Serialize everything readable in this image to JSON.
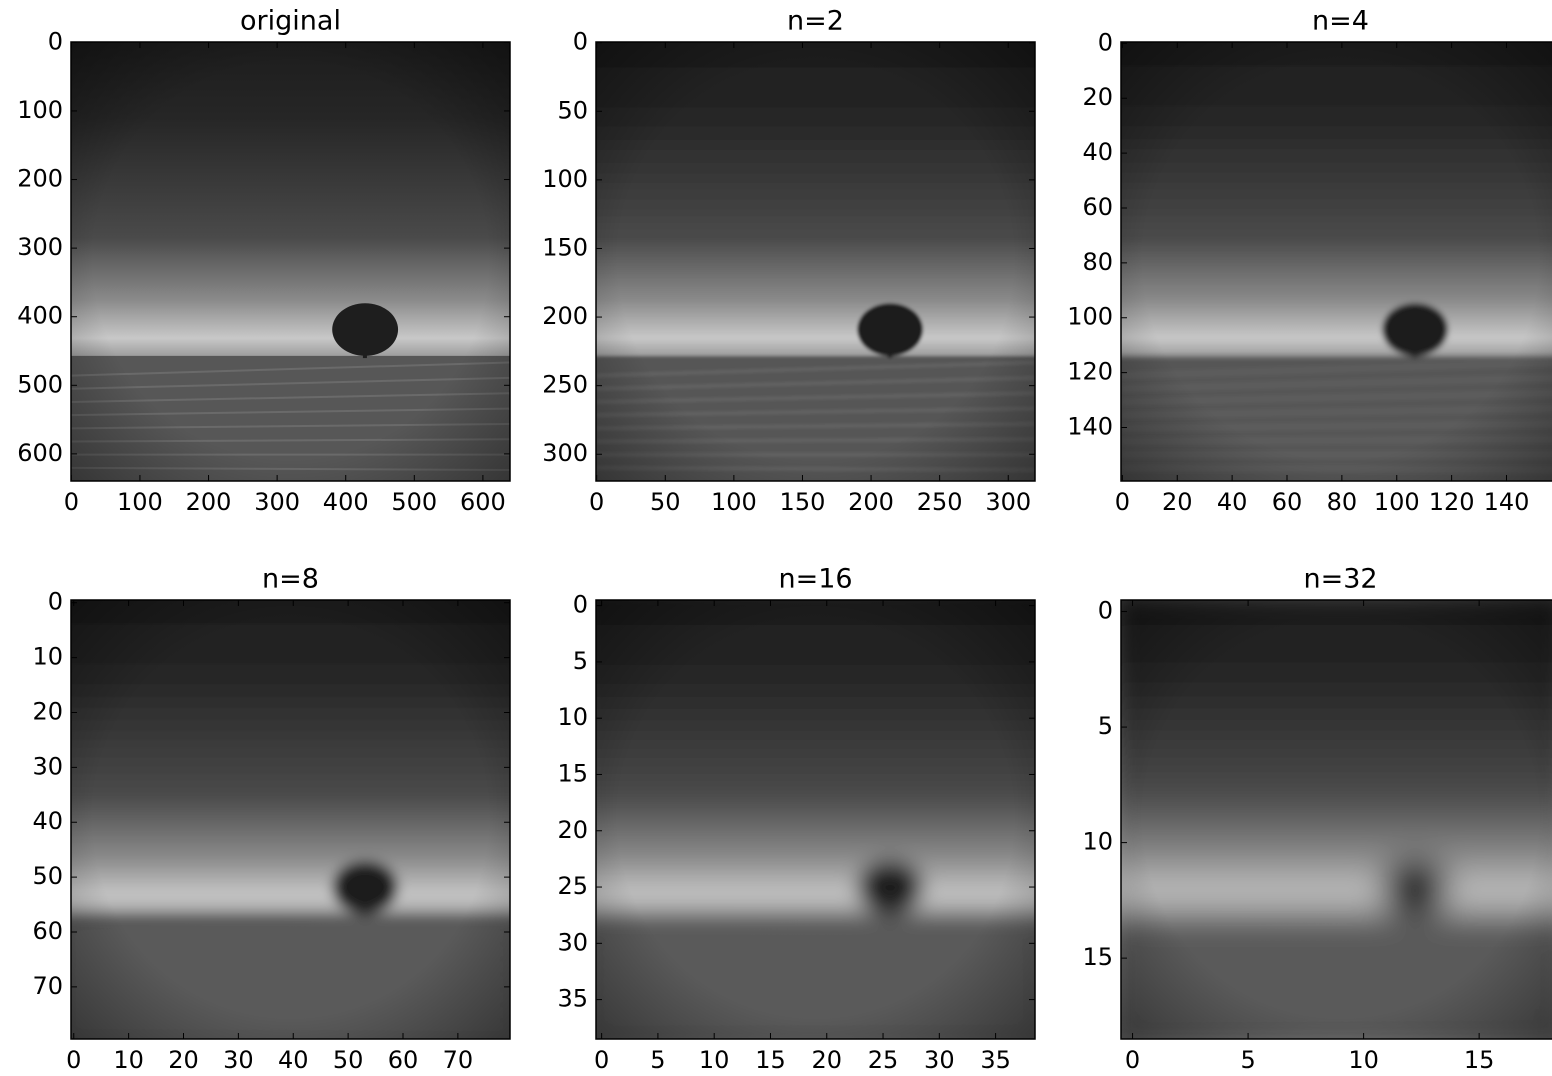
{
  "chart_data": [
    {
      "type": "image",
      "title": "original",
      "xlim": [
        -0.5,
        639.5
      ],
      "ylim": [
        639.5,
        -0.5
      ],
      "xticks": [
        0,
        100,
        200,
        300,
        400,
        500,
        600
      ],
      "yticks": [
        0,
        100,
        200,
        300,
        400,
        500,
        600
      ]
    },
    {
      "type": "image",
      "title": "n=2",
      "xlim": [
        -0.5,
        319.5
      ],
      "ylim": [
        319.5,
        -0.5
      ],
      "xticks": [
        0,
        50,
        100,
        150,
        200,
        250,
        300
      ],
      "yticks": [
        0,
        50,
        100,
        150,
        200,
        250,
        300
      ]
    },
    {
      "type": "image",
      "title": "n=4",
      "xlim": [
        -0.5,
        159.5
      ],
      "ylim": [
        159.5,
        -0.5
      ],
      "xticks": [
        0,
        20,
        40,
        60,
        80,
        100,
        120,
        140
      ],
      "yticks": [
        0,
        20,
        40,
        60,
        80,
        100,
        120,
        140
      ]
    },
    {
      "type": "image",
      "title": "n=8",
      "xlim": [
        -0.5,
        79.5
      ],
      "ylim": [
        79.5,
        -0.5
      ],
      "xticks": [
        0,
        10,
        20,
        30,
        40,
        50,
        60,
        70
      ],
      "yticks": [
        0,
        10,
        20,
        30,
        40,
        50,
        60,
        70
      ]
    },
    {
      "type": "image",
      "title": "n=16",
      "xlim": [
        -0.5,
        38.5
      ],
      "ylim": [
        38.5,
        -0.5
      ],
      "xticks": [
        0,
        5,
        10,
        15,
        20,
        25,
        30,
        35
      ],
      "yticks": [
        0,
        5,
        10,
        15,
        20,
        25,
        30,
        35
      ]
    },
    {
      "type": "image",
      "title": "n=32",
      "xlim": [
        -0.5,
        18.5
      ],
      "ylim": [
        18.5,
        -0.5
      ],
      "xticks": [
        0,
        5,
        10,
        15
      ],
      "yticks": [
        0,
        5,
        10,
        15
      ]
    }
  ]
}
